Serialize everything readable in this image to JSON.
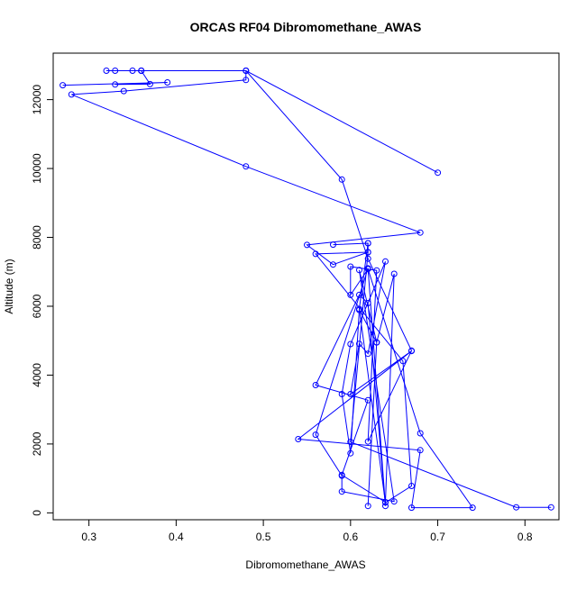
{
  "chart_data": {
    "type": "line",
    "title": "ORCAS RF04 Dibromomethane_AWAS",
    "xlabel": "Dibromomethane_AWAS",
    "ylabel": "Altitude (m)",
    "xlim": [
      0.259,
      0.839
    ],
    "ylim": [
      -200,
      13350
    ],
    "x_ticks": [
      0.3,
      0.4,
      0.5,
      0.6,
      0.7,
      0.8
    ],
    "x_tick_labels": [
      "0.3",
      "0.4",
      "0.5",
      "0.6",
      "0.7",
      "0.8"
    ],
    "y_ticks": [
      0,
      2000,
      4000,
      6000,
      8000,
      10000,
      12000
    ],
    "y_tick_labels": [
      "0",
      "2000",
      "4000",
      "6000",
      "8000",
      "10000",
      "12000"
    ],
    "grid": false,
    "legend": "none",
    "series": [
      {
        "color": "#0000ff",
        "marker": "open-circle",
        "x": [
          0.83,
          0.79,
          0.6,
          0.62,
          0.56,
          0.66,
          0.67,
          0.64,
          0.61,
          0.62,
          0.58,
          0.62,
          0.62,
          0.58,
          0.55,
          0.68,
          0.48,
          0.28,
          0.34,
          0.48,
          0.48,
          0.36,
          0.33,
          0.35,
          0.32,
          0.36,
          0.48,
          0.7
        ],
        "y": [
          160,
          160,
          2060,
          7570,
          7520,
          4410,
          780,
          300,
          5920,
          7830,
          7790,
          7830,
          7570,
          7210,
          7780,
          8140,
          10060,
          12150,
          12250,
          12570,
          12840,
          12840,
          12840,
          12840,
          12840,
          12840,
          12840,
          9880
        ]
      },
      {
        "color": "#0000ff",
        "marker": "open-circle",
        "x": [
          0.27,
          0.39,
          0.33,
          0.37,
          0.36,
          0.48,
          0.59,
          0.62,
          0.67,
          0.62,
          0.63,
          0.6,
          0.6,
          0.62,
          0.68,
          0.74,
          0.67,
          0.68,
          0.54,
          0.67,
          0.6,
          0.61,
          0.62,
          0.64,
          0.6,
          0.59,
          0.6,
          0.61,
          0.63,
          0.65,
          0.64,
          0.59,
          0.62,
          0.56,
          0.61,
          0.62,
          0.64,
          0.62,
          0.56,
          0.59,
          0.59,
          0.65,
          0.61,
          0.63,
          0.62
        ],
        "y": [
          12420,
          12500,
          12440,
          12450,
          12840,
          12840,
          9680,
          7380,
          4710,
          2070,
          7040,
          7150,
          6330,
          7080,
          2310,
          150,
          150,
          1820,
          2140,
          4700,
          3450,
          4910,
          4620,
          7300,
          4900,
          3450,
          1730,
          5890,
          4950,
          6940,
          310,
          1100,
          3270,
          3710,
          6330,
          6090,
          200,
          7100,
          2270,
          1080,
          620,
          330,
          7050,
          4950,
          200
        ]
      }
    ]
  }
}
